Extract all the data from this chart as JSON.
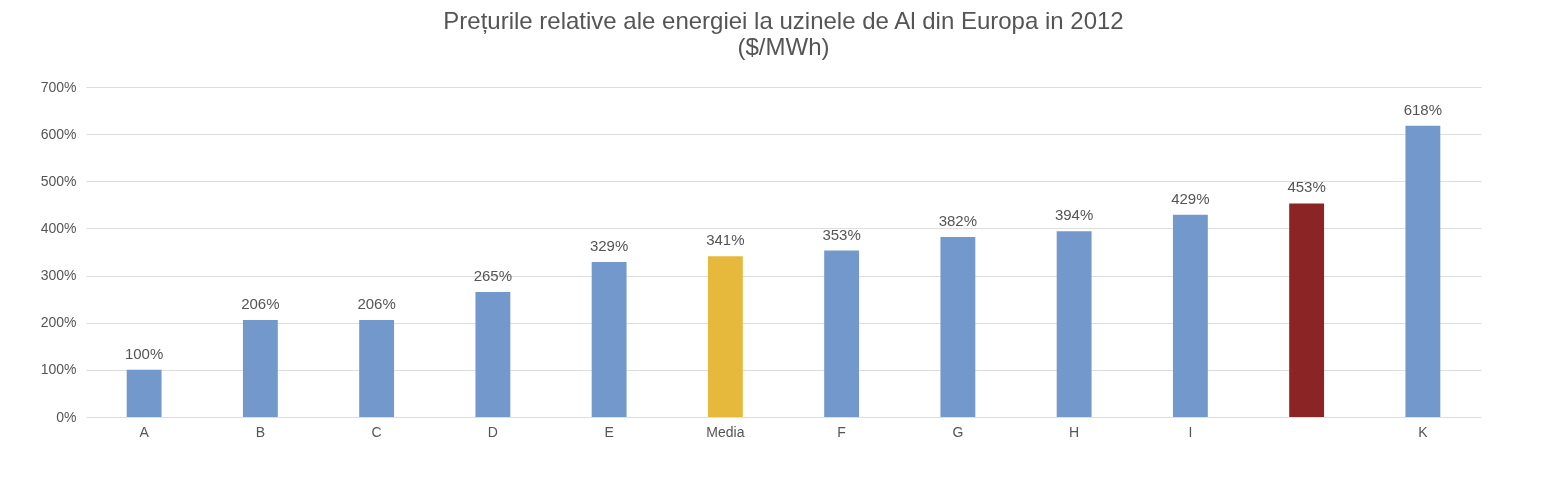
{
  "chart_data": {
    "type": "bar",
    "title": "Prețurile relative ale energiei la uzinele de Al din Europa in 2012",
    "subtitle": "($/MWh)",
    "categories": [
      "A",
      "B",
      "C",
      "D",
      "E",
      "Media",
      "F",
      "G",
      "H",
      "I",
      null,
      "K"
    ],
    "values": [
      100,
      206,
      206,
      265,
      329,
      341,
      353,
      382,
      394,
      429,
      453,
      618
    ],
    "value_labels": [
      "100%",
      "206%",
      "206%",
      "265%",
      "329%",
      "341%",
      "353%",
      "382%",
      "394%",
      "429%",
      "453%",
      "618%"
    ],
    "colors": [
      "#7399cc",
      "#7399cc",
      "#7399cc",
      "#7399cc",
      "#7399cc",
      "#e6b83c",
      "#7399cc",
      "#7399cc",
      "#7399cc",
      "#7399cc",
      "#8b2525",
      "#7399cc"
    ],
    "ylim": [
      0,
      700
    ],
    "yticks": [
      {
        "value": 0,
        "label": "0%"
      },
      {
        "value": 100,
        "label": "100%"
      },
      {
        "value": 200,
        "label": "200%"
      },
      {
        "value": 300,
        "label": "300%"
      },
      {
        "value": 400,
        "label": "400%"
      },
      {
        "value": 500,
        "label": "500%"
      },
      {
        "value": 600,
        "label": "600%"
      },
      {
        "value": 700,
        "label": "700%"
      }
    ],
    "grid": "y"
  }
}
